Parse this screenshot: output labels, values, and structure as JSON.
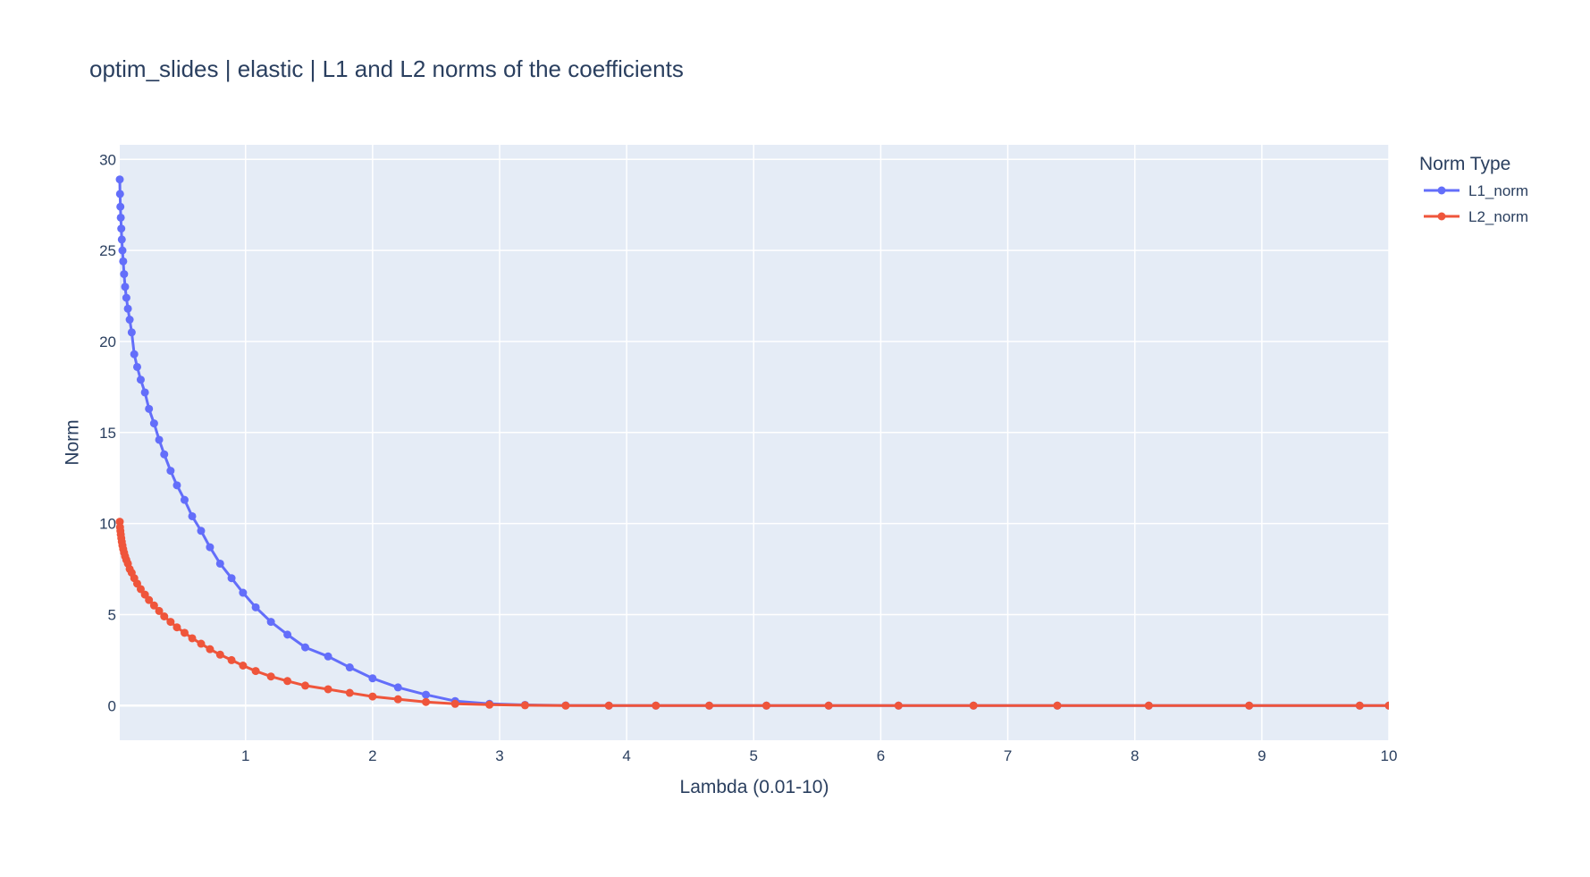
{
  "chart_data": {
    "type": "line",
    "title": "optim_slides | elastic | L1 and L2 norms of the coefficients",
    "xlabel": "Lambda (0.01-10)",
    "ylabel": "Norm",
    "xlim": [
      0.01,
      10
    ],
    "ylim": [
      -1.9,
      30.8
    ],
    "x_ticks": [
      1,
      2,
      3,
      4,
      5,
      6,
      7,
      8,
      9,
      10
    ],
    "y_ticks": [
      0,
      5,
      10,
      15,
      20,
      25,
      30
    ],
    "grid": true,
    "legend_title": "Norm Type",
    "legend_position": "top-right",
    "plot_background": "#e5ecf6",
    "series": [
      {
        "name": "L1_norm",
        "color": "#636efa",
        "x": [
          0.01,
          0.012,
          0.015,
          0.018,
          0.022,
          0.026,
          0.031,
          0.037,
          0.044,
          0.052,
          0.062,
          0.074,
          0.088,
          0.104,
          0.124,
          0.147,
          0.175,
          0.208,
          0.24,
          0.28,
          0.32,
          0.36,
          0.41,
          0.46,
          0.52,
          0.58,
          0.65,
          0.72,
          0.8,
          0.89,
          0.98,
          1.08,
          1.2,
          1.33,
          1.47,
          1.65,
          1.82,
          2.0,
          2.2,
          2.42,
          2.65,
          2.92,
          3.2,
          3.52,
          3.86,
          4.23,
          4.65,
          5.1,
          5.59,
          6.14,
          6.73,
          7.39,
          8.11,
          8.9,
          9.77,
          10
        ],
        "y": [
          28.9,
          28.1,
          27.4,
          26.8,
          26.2,
          25.6,
          25.0,
          24.4,
          23.7,
          23.0,
          22.4,
          21.8,
          21.2,
          20.5,
          19.3,
          18.6,
          17.9,
          17.2,
          16.3,
          15.5,
          14.6,
          13.8,
          12.9,
          12.1,
          11.3,
          10.4,
          9.6,
          8.7,
          7.8,
          7.0,
          6.2,
          5.4,
          4.6,
          3.9,
          3.2,
          2.7,
          2.1,
          1.5,
          1.0,
          0.6,
          0.25,
          0.1,
          0.04,
          0.01,
          0,
          0,
          0,
          0,
          0,
          0,
          0,
          0,
          0,
          0,
          0,
          0
        ]
      },
      {
        "name": "L2_norm",
        "color": "#ef553b",
        "x": [
          0.01,
          0.012,
          0.015,
          0.018,
          0.022,
          0.026,
          0.031,
          0.037,
          0.044,
          0.052,
          0.062,
          0.074,
          0.088,
          0.104,
          0.124,
          0.147,
          0.175,
          0.208,
          0.24,
          0.28,
          0.32,
          0.36,
          0.41,
          0.46,
          0.52,
          0.58,
          0.65,
          0.72,
          0.8,
          0.89,
          0.98,
          1.08,
          1.2,
          1.33,
          1.47,
          1.65,
          1.82,
          2.0,
          2.2,
          2.42,
          2.65,
          2.92,
          3.2,
          3.52,
          3.86,
          4.23,
          4.65,
          5.1,
          5.59,
          6.14,
          6.73,
          7.39,
          8.11,
          8.9,
          9.77,
          10
        ],
        "y": [
          10.1,
          9.8,
          9.6,
          9.4,
          9.2,
          9.0,
          8.8,
          8.6,
          8.4,
          8.2,
          8.0,
          7.8,
          7.5,
          7.3,
          7.0,
          6.7,
          6.4,
          6.1,
          5.8,
          5.5,
          5.2,
          4.9,
          4.6,
          4.3,
          4.0,
          3.7,
          3.4,
          3.1,
          2.8,
          2.5,
          2.2,
          1.9,
          1.6,
          1.35,
          1.1,
          0.9,
          0.7,
          0.5,
          0.35,
          0.2,
          0.1,
          0.05,
          0.02,
          0,
          0,
          0,
          0,
          0,
          0,
          0,
          0,
          0,
          0,
          0,
          0,
          0
        ]
      }
    ]
  }
}
